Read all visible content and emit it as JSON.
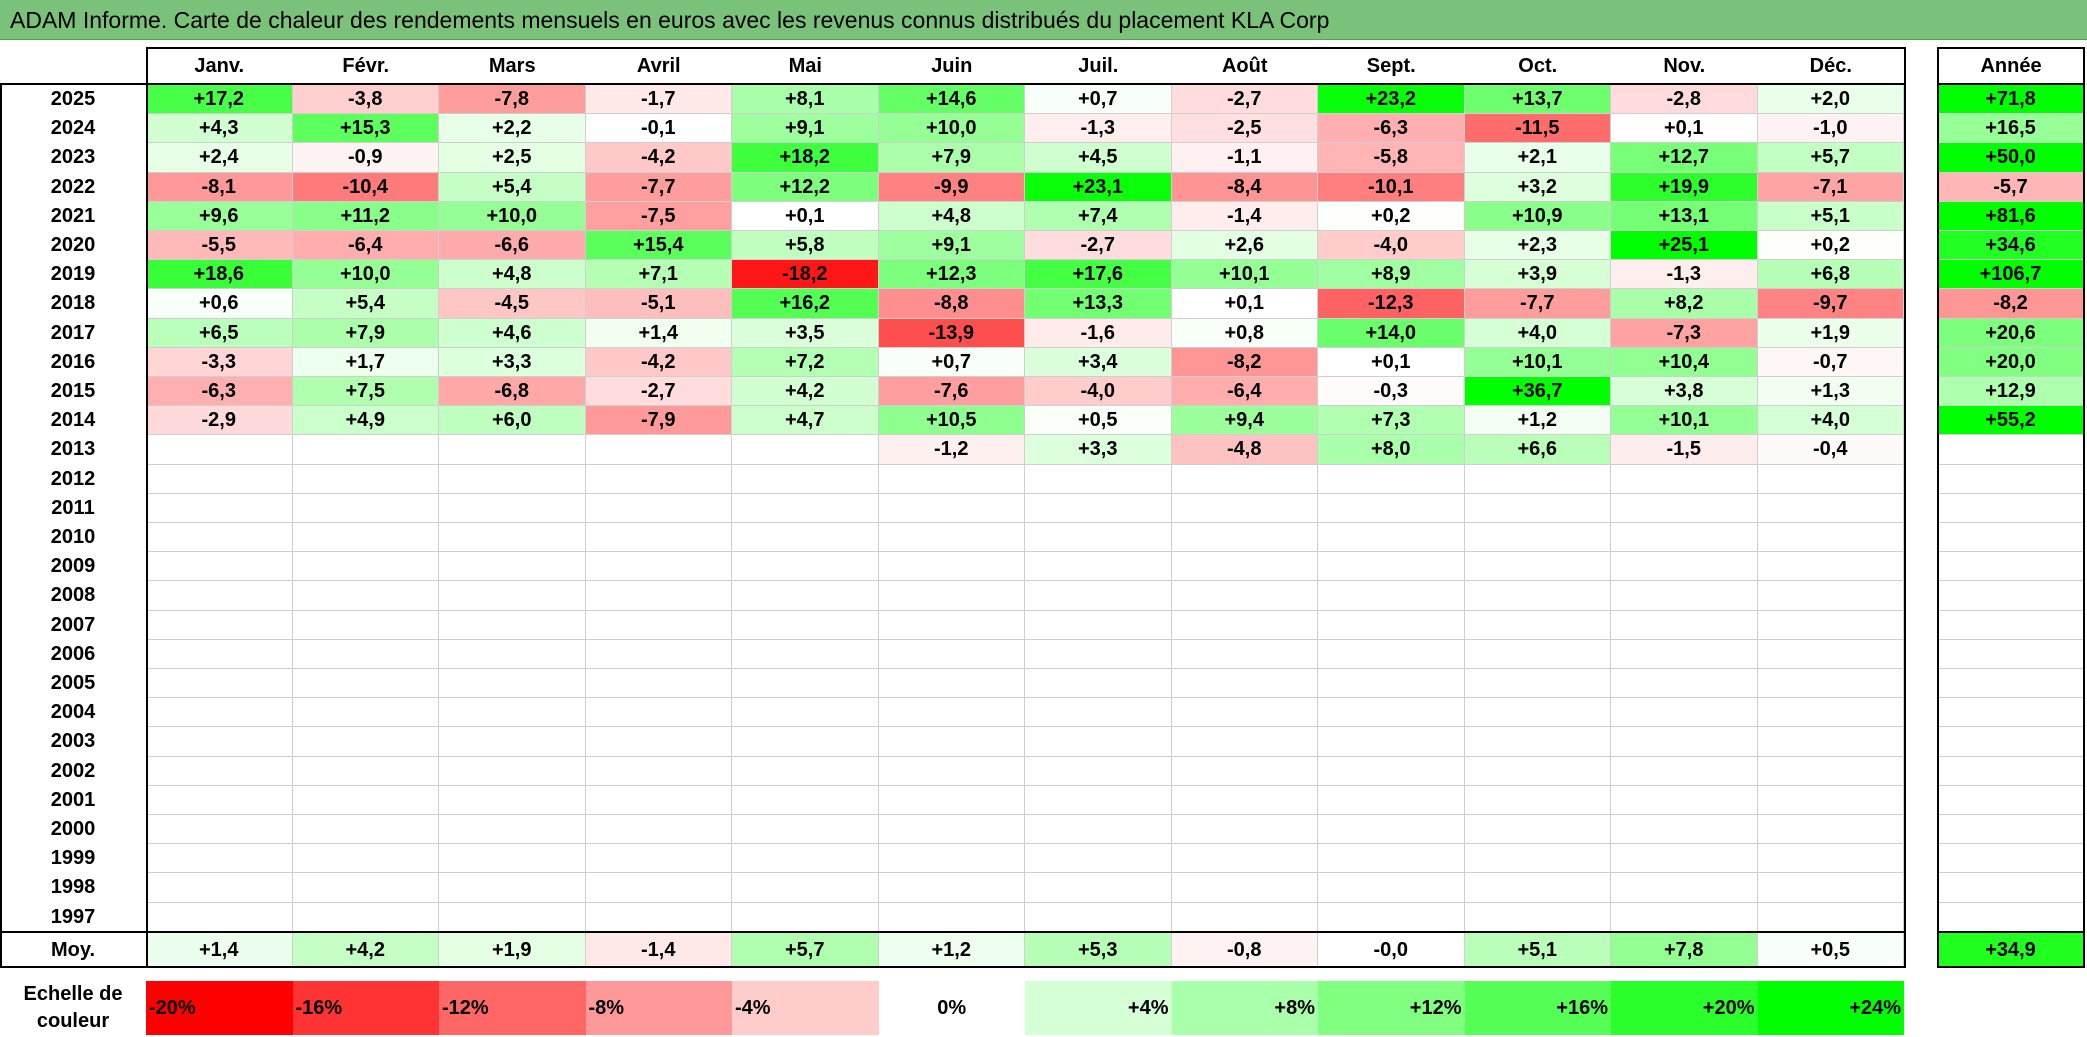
{
  "title": "ADAM Informe. Carte de chaleur des rendements mensuels en euros avec les revenus connus distribués du placement KLA Corp",
  "chart_data": {
    "type": "heatmap",
    "title": "ADAM Informe. Carte de chaleur des rendements mensuels en euros avec les revenus connus distribués du placement KLA Corp",
    "months": [
      "Janv.",
      "Févr.",
      "Mars",
      "Avril",
      "Mai",
      "Juin",
      "Juil.",
      "Août",
      "Sept.",
      "Oct.",
      "Nov.",
      "Déc."
    ],
    "year_header": "Année",
    "rows": [
      {
        "year": "2025",
        "values": [
          "+17,2",
          "-3,8",
          "-7,8",
          "-1,7",
          "+8,1",
          "+14,6",
          "+0,7",
          "-2,7",
          "+23,2",
          "+13,7",
          "-2,8",
          "+2,0"
        ],
        "annual": "+71,8"
      },
      {
        "year": "2024",
        "values": [
          "+4,3",
          "+15,3",
          "+2,2",
          "-0,1",
          "+9,1",
          "+10,0",
          "-1,3",
          "-2,5",
          "-6,3",
          "-11,5",
          "+0,1",
          "-1,0"
        ],
        "annual": "+16,5"
      },
      {
        "year": "2023",
        "values": [
          "+2,4",
          "-0,9",
          "+2,5",
          "-4,2",
          "+18,2",
          "+7,9",
          "+4,5",
          "-1,1",
          "-5,8",
          "+2,1",
          "+12,7",
          "+5,7"
        ],
        "annual": "+50,0"
      },
      {
        "year": "2022",
        "values": [
          "-8,1",
          "-10,4",
          "+5,4",
          "-7,7",
          "+12,2",
          "-9,9",
          "+23,1",
          "-8,4",
          "-10,1",
          "+3,2",
          "+19,9",
          "-7,1"
        ],
        "annual": "-5,7"
      },
      {
        "year": "2021",
        "values": [
          "+9,6",
          "+11,2",
          "+10,0",
          "-7,5",
          "+0,1",
          "+4,8",
          "+7,4",
          "-1,4",
          "+0,2",
          "+10,9",
          "+13,1",
          "+5,1"
        ],
        "annual": "+81,6"
      },
      {
        "year": "2020",
        "values": [
          "-5,5",
          "-6,4",
          "-6,6",
          "+15,4",
          "+5,8",
          "+9,1",
          "-2,7",
          "+2,6",
          "-4,0",
          "+2,3",
          "+25,1",
          "+0,2"
        ],
        "annual": "+34,6"
      },
      {
        "year": "2019",
        "values": [
          "+18,6",
          "+10,0",
          "+4,8",
          "+7,1",
          "-18,2",
          "+12,3",
          "+17,6",
          "+10,1",
          "+8,9",
          "+3,9",
          "-1,3",
          "+6,8"
        ],
        "annual": "+106,7"
      },
      {
        "year": "2018",
        "values": [
          "+0,6",
          "+5,4",
          "-4,5",
          "-5,1",
          "+16,2",
          "-8,8",
          "+13,3",
          "+0,1",
          "-12,3",
          "-7,7",
          "+8,2",
          "-9,7"
        ],
        "annual": "-8,2"
      },
      {
        "year": "2017",
        "values": [
          "+6,5",
          "+7,9",
          "+4,6",
          "+1,4",
          "+3,5",
          "-13,9",
          "-1,6",
          "+0,8",
          "+14,0",
          "+4,0",
          "-7,3",
          "+1,9"
        ],
        "annual": "+20,6"
      },
      {
        "year": "2016",
        "values": [
          "-3,3",
          "+1,7",
          "+3,3",
          "-4,2",
          "+7,2",
          "+0,7",
          "+3,4",
          "-8,2",
          "+0,1",
          "+10,1",
          "+10,4",
          "-0,7"
        ],
        "annual": "+20,0"
      },
      {
        "year": "2015",
        "values": [
          "-6,3",
          "+7,5",
          "-6,8",
          "-2,7",
          "+4,2",
          "-7,6",
          "-4,0",
          "-6,4",
          "-0,3",
          "+36,7",
          "+3,8",
          "+1,3"
        ],
        "annual": "+12,9"
      },
      {
        "year": "2014",
        "values": [
          "-2,9",
          "+4,9",
          "+6,0",
          "-7,9",
          "+4,7",
          "+10,5",
          "+0,5",
          "+9,4",
          "+7,3",
          "+1,2",
          "+10,1",
          "+4,0"
        ],
        "annual": "+55,2"
      },
      {
        "year": "2013",
        "values": [
          "",
          "",
          "",
          "",
          "",
          "-1,2",
          "+3,3",
          "-4,8",
          "+8,0",
          "+6,6",
          "-1,5",
          "-0,4"
        ],
        "annual": ""
      },
      {
        "year": "2012",
        "values": [
          "",
          "",
          "",
          "",
          "",
          "",
          "",
          "",
          "",
          "",
          "",
          ""
        ],
        "annual": ""
      },
      {
        "year": "2011",
        "values": [
          "",
          "",
          "",
          "",
          "",
          "",
          "",
          "",
          "",
          "",
          "",
          ""
        ],
        "annual": ""
      },
      {
        "year": "2010",
        "values": [
          "",
          "",
          "",
          "",
          "",
          "",
          "",
          "",
          "",
          "",
          "",
          ""
        ],
        "annual": ""
      },
      {
        "year": "2009",
        "values": [
          "",
          "",
          "",
          "",
          "",
          "",
          "",
          "",
          "",
          "",
          "",
          ""
        ],
        "annual": ""
      },
      {
        "year": "2008",
        "values": [
          "",
          "",
          "",
          "",
          "",
          "",
          "",
          "",
          "",
          "",
          "",
          ""
        ],
        "annual": ""
      },
      {
        "year": "2007",
        "values": [
          "",
          "",
          "",
          "",
          "",
          "",
          "",
          "",
          "",
          "",
          "",
          ""
        ],
        "annual": ""
      },
      {
        "year": "2006",
        "values": [
          "",
          "",
          "",
          "",
          "",
          "",
          "",
          "",
          "",
          "",
          "",
          ""
        ],
        "annual": ""
      },
      {
        "year": "2005",
        "values": [
          "",
          "",
          "",
          "",
          "",
          "",
          "",
          "",
          "",
          "",
          "",
          ""
        ],
        "annual": ""
      },
      {
        "year": "2004",
        "values": [
          "",
          "",
          "",
          "",
          "",
          "",
          "",
          "",
          "",
          "",
          "",
          ""
        ],
        "annual": ""
      },
      {
        "year": "2003",
        "values": [
          "",
          "",
          "",
          "",
          "",
          "",
          "",
          "",
          "",
          "",
          "",
          ""
        ],
        "annual": ""
      },
      {
        "year": "2002",
        "values": [
          "",
          "",
          "",
          "",
          "",
          "",
          "",
          "",
          "",
          "",
          "",
          ""
        ],
        "annual": ""
      },
      {
        "year": "2001",
        "values": [
          "",
          "",
          "",
          "",
          "",
          "",
          "",
          "",
          "",
          "",
          "",
          ""
        ],
        "annual": ""
      },
      {
        "year": "2000",
        "values": [
          "",
          "",
          "",
          "",
          "",
          "",
          "",
          "",
          "",
          "",
          "",
          ""
        ],
        "annual": ""
      },
      {
        "year": "1999",
        "values": [
          "",
          "",
          "",
          "",
          "",
          "",
          "",
          "",
          "",
          "",
          "",
          ""
        ],
        "annual": ""
      },
      {
        "year": "1998",
        "values": [
          "",
          "",
          "",
          "",
          "",
          "",
          "",
          "",
          "",
          "",
          "",
          ""
        ],
        "annual": ""
      },
      {
        "year": "1997",
        "values": [
          "",
          "",
          "",
          "",
          "",
          "",
          "",
          "",
          "",
          "",
          "",
          ""
        ],
        "annual": ""
      }
    ],
    "average": {
      "label": "Moy.",
      "values": [
        "+1,4",
        "+4,2",
        "+1,9",
        "-1,4",
        "+5,7",
        "+1,2",
        "+5,3",
        "-0,8",
        "-0,0",
        "+5,1",
        "+7,8",
        "+0,5"
      ],
      "annual": "+34,9"
    },
    "scale": {
      "label_line1": "Echelle de",
      "label_line2": "couleur",
      "steps": [
        "-20%",
        "-16%",
        "-12%",
        "-8%",
        "-4%",
        "0%",
        "+4%",
        "+8%",
        "+12%",
        "+16%",
        "+20%",
        "+24%"
      ],
      "step_values": [
        -20,
        -16,
        -12,
        -8,
        -4,
        0,
        4,
        8,
        12,
        16,
        20,
        24
      ]
    },
    "colors": {
      "negative_max": "#ff0000",
      "neutral": "#ffffff",
      "positive_max": "#00ff00",
      "title_bar": "#7ac27a"
    }
  }
}
